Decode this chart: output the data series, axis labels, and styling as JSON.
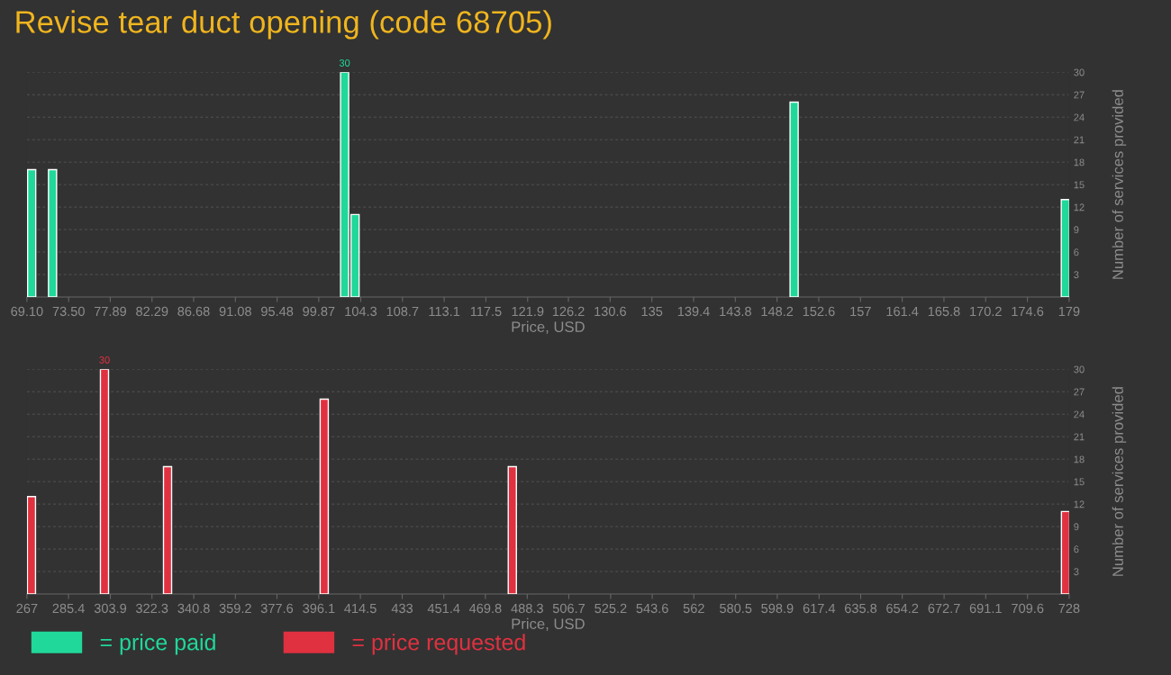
{
  "chart_data": [
    {
      "type": "bar",
      "title": "Revise tear duct opening (code 68705)",
      "xlabel": "Price, USD",
      "ylabel": "Number of services provided",
      "x": [
        69.6,
        71.8,
        102.6,
        103.7,
        150.0,
        178.6
      ],
      "series": [
        {
          "name": "= price paid",
          "color": "#20d89a",
          "values": [
            17,
            17,
            30,
            11,
            26,
            13
          ],
          "value_labels": [
            null,
            null,
            "30",
            null,
            null,
            null
          ]
        }
      ],
      "xlim": [
        69.1,
        179
      ],
      "xticks": [
        {
          "value": 69.1,
          "label": "69.10"
        },
        {
          "value": 73.5,
          "label": "73.50"
        },
        77.89,
        82.29,
        86.68,
        91.08,
        95.48,
        99.87,
        104.3,
        108.7,
        113.1,
        117.5,
        121.9,
        126.2,
        130.6,
        135,
        139.4,
        143.8,
        148.2,
        152.6,
        157,
        161.4,
        165.8,
        170.2,
        174.6,
        179
      ],
      "ylim": [
        0,
        30
      ],
      "yticks": [
        3,
        6,
        9,
        12,
        15,
        18,
        21,
        24,
        27,
        30
      ],
      "grid": "y",
      "legend": "bottom"
    },
    {
      "type": "bar",
      "xlabel": "Price, USD",
      "ylabel": "Number of services provided",
      "x": [
        269.0,
        301.3,
        329.2,
        398.5,
        481.7,
        726.4
      ],
      "series": [
        {
          "name": "= price requested",
          "color": "#e03140",
          "values": [
            13,
            30,
            17,
            26,
            17,
            11
          ],
          "value_labels": [
            null,
            "30",
            null,
            null,
            null,
            null
          ]
        }
      ],
      "xlim": [
        267,
        728
      ],
      "xticks": [
        267,
        285.4,
        303.9,
        322.3,
        340.8,
        359.2,
        377.6,
        396.1,
        414.5,
        433,
        451.4,
        469.8,
        488.3,
        506.7,
        525.2,
        543.6,
        562,
        580.5,
        598.9,
        617.4,
        635.8,
        654.2,
        672.7,
        691.1,
        709.6,
        728
      ],
      "ylim": [
        0,
        30
      ],
      "yticks": [
        3,
        6,
        9,
        12,
        15,
        18,
        21,
        24,
        27,
        30
      ],
      "grid": "y",
      "legend": "bottom"
    }
  ]
}
